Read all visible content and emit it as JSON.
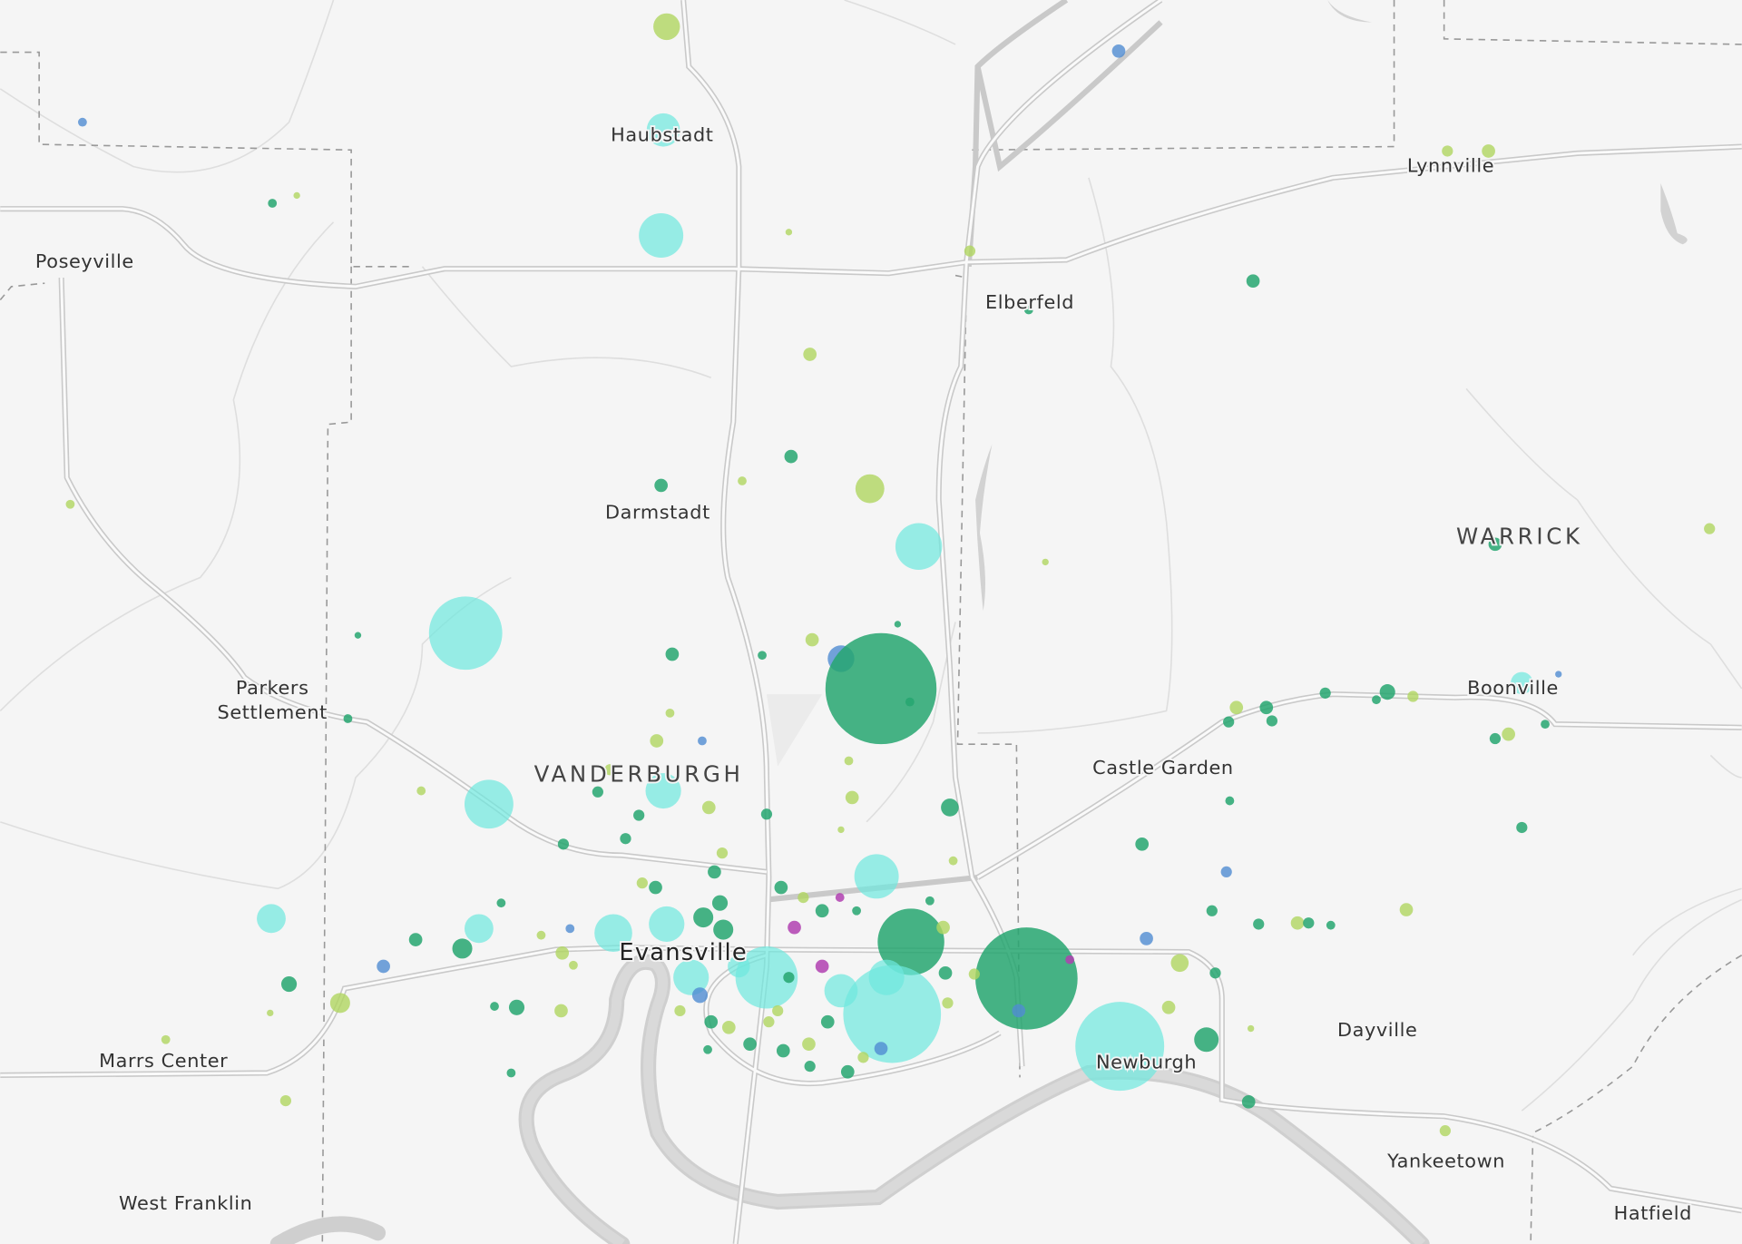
{
  "places": [
    {
      "lines": [
        "Haubstadt"
      ]
    },
    {
      "lines": [
        "Lynnville"
      ]
    },
    {
      "lines": [
        "Poseyville"
      ]
    },
    {
      "lines": [
        "Elberfeld"
      ]
    },
    {
      "lines": [
        "Darmstadt"
      ]
    },
    {
      "lines": [
        "WARRICK"
      ]
    },
    {
      "lines": [
        "Parkers",
        "Settlement"
      ]
    },
    {
      "lines": [
        "Boonville"
      ]
    },
    {
      "lines": [
        "VANDERBURGH"
      ]
    },
    {
      "lines": [
        "Castle Garden"
      ]
    },
    {
      "lines": [
        "Evansville"
      ]
    },
    {
      "lines": [
        "Dayville"
      ]
    },
    {
      "lines": [
        "Marrs Center"
      ]
    },
    {
      "lines": [
        "Newburgh"
      ]
    },
    {
      "lines": [
        "Yankeetown"
      ]
    },
    {
      "lines": [
        "West Franklin"
      ]
    },
    {
      "lines": [
        "Hatfield"
      ]
    }
  ]
}
